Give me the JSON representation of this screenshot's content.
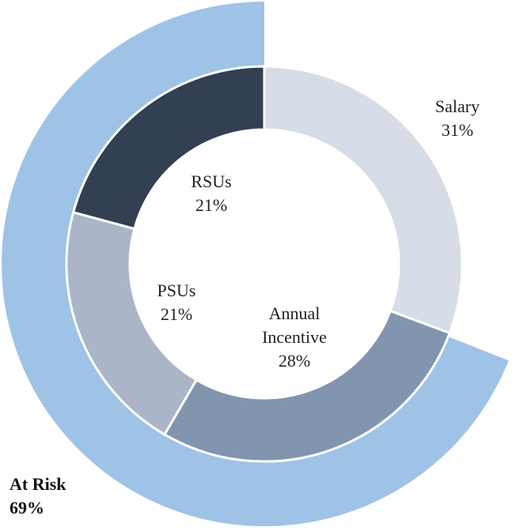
{
  "chart_data": {
    "type": "pie",
    "variant": "nested-donut",
    "inner_ring": [
      {
        "label": "Salary",
        "value": 31,
        "display": "31%",
        "color": "#d6dde7"
      },
      {
        "label": "Annual Incentive",
        "value": 28,
        "display": "28%",
        "color": "#8195af"
      },
      {
        "label": "PSUs",
        "value": 21,
        "display": "21%",
        "color": "#aab6c8"
      },
      {
        "label": "RSUs",
        "value": 21,
        "display": "21%",
        "color": "#333f53"
      }
    ],
    "outer_ring": [
      {
        "label": "At Risk",
        "value": 69,
        "display": "69%",
        "color": "#9fc3e6"
      }
    ]
  },
  "labels": {
    "salary": {
      "name": "Salary",
      "pct": "31%"
    },
    "annual_incentive": {
      "name_line1": "Annual",
      "name_line2": "Incentive",
      "pct": "28%"
    },
    "psus": {
      "name": "PSUs",
      "pct": "21%"
    },
    "rsus": {
      "name": "RSUs",
      "pct": "21%"
    },
    "at_risk": {
      "name": "At Risk",
      "pct": "69%"
    }
  }
}
